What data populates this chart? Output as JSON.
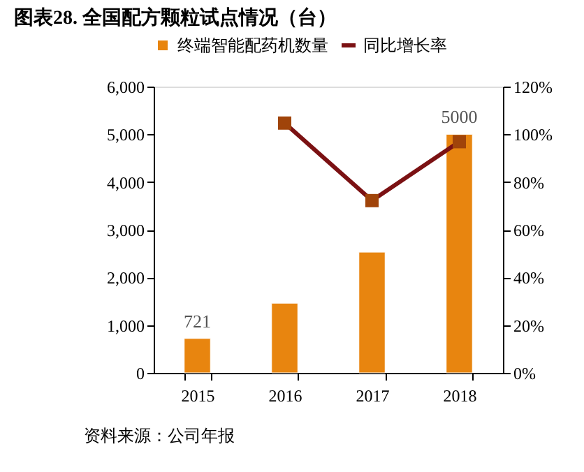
{
  "chart_data": {
    "type": "bar",
    "title": "图表28.  全国配方颗粒试点情况（台）",
    "categories": [
      "2015",
      "2016",
      "2017",
      "2018"
    ],
    "series": [
      {
        "name": "终端智能配药机数量",
        "color": "#e8850f",
        "values": [
          721,
          1460,
          2530,
          5000
        ],
        "value_labels": [
          "721",
          null,
          null,
          "5000"
        ]
      },
      {
        "name": "同比增长率",
        "type": "line",
        "axis": "y2",
        "color": "#7b1113",
        "marker": "square",
        "values": [
          null,
          104.7,
          72.2,
          96.9
        ]
      }
    ],
    "ylim": [
      0,
      6000
    ],
    "yticks": [
      {
        "value": 0,
        "label": "0"
      },
      {
        "value": 1000,
        "label": "1,000"
      },
      {
        "value": 2000,
        "label": "2,000"
      },
      {
        "value": 3000,
        "label": "3,000"
      },
      {
        "value": 4000,
        "label": "4,000"
      },
      {
        "value": 5000,
        "label": "5,000"
      },
      {
        "value": 6000,
        "label": "6,000"
      }
    ],
    "y2lim": [
      0,
      120
    ],
    "y2ticks": [
      {
        "value": 0,
        "label": "0%"
      },
      {
        "value": 20,
        "label": "20%"
      },
      {
        "value": 40,
        "label": "40%"
      },
      {
        "value": 60,
        "label": "60%"
      },
      {
        "value": 80,
        "label": "80%"
      },
      {
        "value": 100,
        "label": "100%"
      },
      {
        "value": 120,
        "label": "120%"
      }
    ],
    "grid": false,
    "legend": "top",
    "annotations": [
      "资料来源：公司年报"
    ]
  }
}
